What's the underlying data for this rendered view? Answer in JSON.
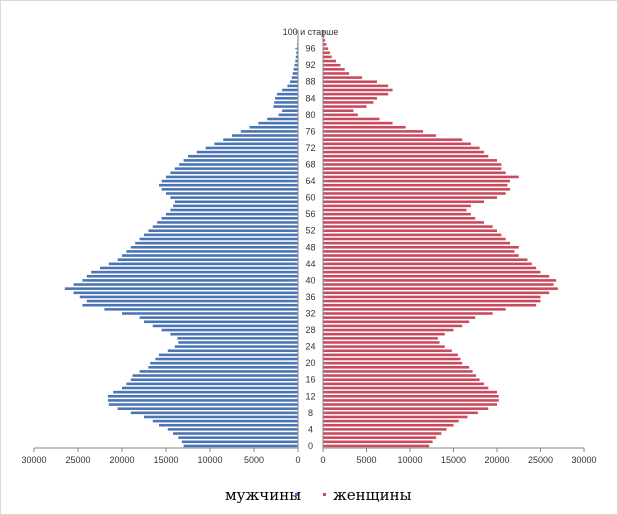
{
  "chart_data": {
    "type": "bar",
    "orientation": "horizontal",
    "subtype": "population-pyramid",
    "title": "",
    "xlabel": "",
    "ylabel": "",
    "age_tick_labels": [
      "0",
      "4",
      "8",
      "12",
      "16",
      "20",
      "24",
      "28",
      "32",
      "36",
      "40",
      "44",
      "48",
      "52",
      "56",
      "60",
      "64",
      "68",
      "72",
      "76",
      "80",
      "84",
      "88",
      "92",
      "96",
      "100 и старше"
    ],
    "x_tick_labels_left": [
      "30000",
      "25000",
      "20000",
      "15000",
      "10000",
      "5000",
      "0"
    ],
    "x_tick_labels_right": [
      "0",
      "5000",
      "10000",
      "15000",
      "20000",
      "25000",
      "30000"
    ],
    "xlim": [
      0,
      30000
    ],
    "grid": false,
    "legend_position": "bottom",
    "categories": [
      "0",
      "1",
      "2",
      "3",
      "4",
      "5",
      "6",
      "7",
      "8",
      "9",
      "10",
      "11",
      "12",
      "13",
      "14",
      "15",
      "16",
      "17",
      "18",
      "19",
      "20",
      "21",
      "22",
      "23",
      "24",
      "25",
      "26",
      "27",
      "28",
      "29",
      "30",
      "31",
      "32",
      "33",
      "34",
      "35",
      "36",
      "37",
      "38",
      "39",
      "40",
      "41",
      "42",
      "43",
      "44",
      "45",
      "46",
      "47",
      "48",
      "49",
      "50",
      "51",
      "52",
      "53",
      "54",
      "55",
      "56",
      "57",
      "58",
      "59",
      "60",
      "61",
      "62",
      "63",
      "64",
      "65",
      "66",
      "67",
      "68",
      "69",
      "70",
      "71",
      "72",
      "73",
      "74",
      "75",
      "76",
      "77",
      "78",
      "79",
      "80",
      "81",
      "82",
      "83",
      "84",
      "85",
      "86",
      "87",
      "88",
      "89",
      "90",
      "91",
      "92",
      "93",
      "94",
      "95",
      "96",
      "97",
      "98",
      "99",
      "100 и старше"
    ],
    "series": [
      {
        "name": "мужчины",
        "color": "#4a74b3",
        "values": [
          13000,
          13200,
          13600,
          14200,
          14800,
          15800,
          16500,
          17500,
          19000,
          20500,
          21500,
          21600,
          21600,
          21000,
          20000,
          19500,
          19000,
          18800,
          18000,
          17000,
          16800,
          16200,
          15800,
          14800,
          14000,
          13600,
          13700,
          14500,
          15500,
          16500,
          17500,
          18000,
          20000,
          22000,
          24500,
          24000,
          24800,
          25500,
          26500,
          25500,
          24500,
          24000,
          23500,
          22500,
          21500,
          20500,
          20000,
          19500,
          19000,
          18500,
          18000,
          17500,
          17000,
          16500,
          16000,
          15500,
          15000,
          14500,
          14200,
          14000,
          14500,
          15000,
          15500,
          15800,
          15500,
          15000,
          14500,
          14000,
          13500,
          13000,
          12500,
          11500,
          10500,
          9500,
          8500,
          7500,
          6500,
          5500,
          4500,
          3500,
          2200,
          1800,
          2800,
          2700,
          2600,
          2400,
          1800,
          1200,
          900,
          700,
          600,
          500,
          400,
          300,
          250,
          200,
          150,
          100,
          80,
          60,
          50
        ]
      },
      {
        "name": "женщины",
        "color": "#c94a5d",
        "values": [
          12200,
          12600,
          13000,
          13600,
          14200,
          15000,
          15600,
          16600,
          17800,
          19000,
          20000,
          20200,
          20200,
          20000,
          19000,
          18500,
          18000,
          17600,
          17200,
          16800,
          16000,
          15800,
          15500,
          14800,
          14000,
          13400,
          13200,
          14000,
          15000,
          16000,
          16800,
          17500,
          19500,
          21000,
          24500,
          25000,
          25000,
          26000,
          27000,
          26500,
          26800,
          26000,
          25000,
          24500,
          24000,
          23500,
          22500,
          22000,
          22500,
          21500,
          21000,
          20500,
          20000,
          19500,
          18500,
          17500,
          17000,
          16500,
          17000,
          18500,
          20000,
          21000,
          21500,
          21200,
          21500,
          22500,
          21000,
          20500,
          20500,
          20000,
          19000,
          18500,
          18000,
          17000,
          16000,
          13000,
          11500,
          9500,
          8000,
          6500,
          4000,
          3500,
          5000,
          5800,
          6200,
          7500,
          8000,
          7500,
          6200,
          4500,
          3000,
          2500,
          2000,
          1500,
          1000,
          800,
          600,
          400,
          250,
          150,
          100
        ]
      }
    ]
  }
}
